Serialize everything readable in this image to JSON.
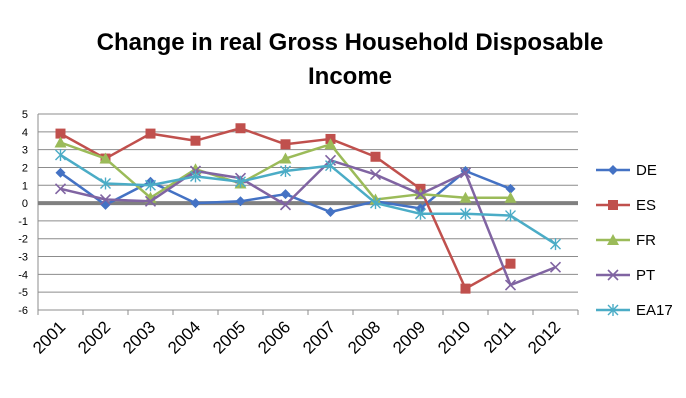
{
  "chart_data": {
    "type": "line",
    "title_lines": [
      "Change in real Gross Household Disposable",
      "Income"
    ],
    "xlabel": "",
    "ylabel": "",
    "categories": [
      "2001",
      "2002",
      "2003",
      "2004",
      "2005",
      "2006",
      "2007",
      "2008",
      "2009",
      "2010",
      "2011",
      "2012"
    ],
    "ylim": [
      -6,
      5
    ],
    "y_ticks": [
      "5",
      "4",
      "3",
      "2",
      "1",
      "0",
      "-1",
      "-2",
      "-3",
      "-4",
      "-5",
      "-6"
    ],
    "grid": true,
    "legend_position": "right",
    "series": [
      {
        "name": "DE",
        "color": "#4472C4",
        "marker": "diamond",
        "values": [
          1.7,
          -0.1,
          1.2,
          0.0,
          0.1,
          0.5,
          -0.5,
          0.1,
          -0.3,
          1.8,
          0.8,
          null
        ]
      },
      {
        "name": "ES",
        "color": "#C0504D",
        "marker": "square",
        "values": [
          3.9,
          2.5,
          3.9,
          3.5,
          4.2,
          3.3,
          3.6,
          2.6,
          0.8,
          -4.8,
          -3.4,
          null
        ]
      },
      {
        "name": "FR",
        "color": "#9BBB59",
        "marker": "triangle",
        "values": [
          3.4,
          2.5,
          0.3,
          1.9,
          1.1,
          2.5,
          3.3,
          0.2,
          0.5,
          0.3,
          0.3,
          null
        ]
      },
      {
        "name": "PT",
        "color": "#8064A2",
        "marker": "x",
        "values": [
          0.8,
          0.2,
          0.1,
          1.8,
          1.4,
          -0.1,
          2.4,
          1.6,
          0.5,
          1.7,
          -4.6,
          -3.6
        ]
      },
      {
        "name": "EA17",
        "color": "#4BACC6",
        "marker": "star",
        "values": [
          2.7,
          1.1,
          1.0,
          1.5,
          1.2,
          1.8,
          2.1,
          0.0,
          -0.6,
          -0.6,
          -0.7,
          -2.3
        ]
      }
    ]
  }
}
